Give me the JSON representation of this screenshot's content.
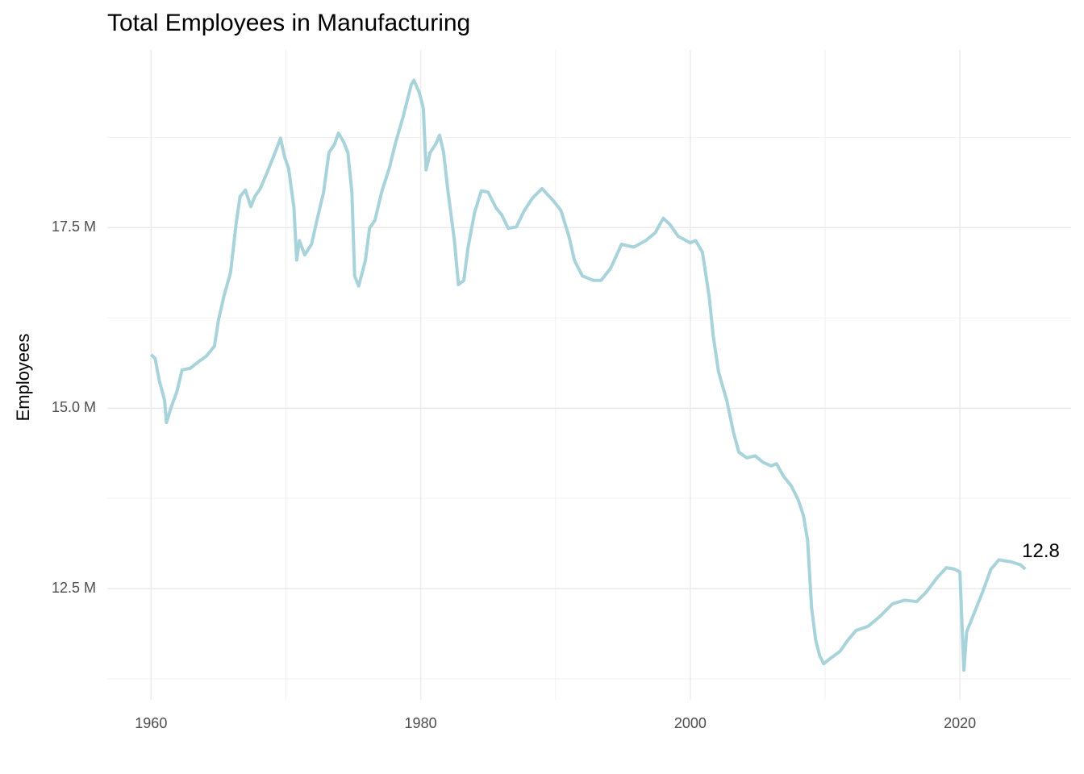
{
  "chart_data": {
    "type": "line",
    "title": "Total Employees in Manufacturing",
    "y_label": "Employees",
    "annotation": "12.8",
    "x": [
      1960.0,
      1960.3,
      1960.6,
      1961.0,
      1961.14,
      1961.5,
      1961.9,
      1962.3,
      1962.9,
      1963.5,
      1964.1,
      1964.7,
      1965.0,
      1965.4,
      1965.9,
      1966.3,
      1966.6,
      1967.0,
      1967.4,
      1967.7,
      1968.1,
      1968.6,
      1969.2,
      1969.6,
      1969.9,
      1970.2,
      1970.6,
      1970.8,
      1971.0,
      1971.4,
      1971.9,
      1972.3,
      1972.8,
      1973.2,
      1973.6,
      1973.9,
      1974.3,
      1974.6,
      1974.9,
      1975.1,
      1975.4,
      1975.9,
      1976.2,
      1976.6,
      1977.1,
      1977.7,
      1978.1,
      1978.7,
      1979.3,
      1979.5,
      1979.9,
      1980.2,
      1980.4,
      1980.7,
      1981.1,
      1981.4,
      1981.7,
      1982.0,
      1982.5,
      1982.8,
      1983.2,
      1983.5,
      1984.0,
      1984.5,
      1985.0,
      1985.6,
      1986.0,
      1986.5,
      1987.1,
      1987.7,
      1988.3,
      1989.0,
      1989.8,
      1990.4,
      1991.0,
      1991.4,
      1992.0,
      1992.8,
      1993.4,
      1994.1,
      1994.9,
      1995.8,
      1996.7,
      1997.4,
      1998.0,
      1998.5,
      1999.1,
      2000.0,
      2000.4,
      2000.9,
      2001.4,
      2001.7,
      2002.1,
      2002.7,
      2003.2,
      2003.6,
      2004.2,
      2004.8,
      2005.4,
      2006.0,
      2006.4,
      2006.9,
      2007.5,
      2008.0,
      2008.4,
      2008.7,
      2009.0,
      2009.3,
      2009.6,
      2009.9,
      2010.5,
      2011.1,
      2011.7,
      2012.3,
      2013.2,
      2014.1,
      2015.0,
      2015.9,
      2016.8,
      2017.5,
      2018.3,
      2019.0,
      2019.6,
      2020.0,
      2020.3,
      2020.5,
      2021.1,
      2021.7,
      2022.3,
      2022.9,
      2023.8,
      2024.5,
      2024.85
    ],
    "series": [
      {
        "color": "#a8d3da",
        "values": [
          15.74,
          15.69,
          15.39,
          15.11,
          14.8,
          15.02,
          15.22,
          15.53,
          15.55,
          15.64,
          15.72,
          15.86,
          16.22,
          16.55,
          16.88,
          17.54,
          17.93,
          18.02,
          17.79,
          17.93,
          18.04,
          18.26,
          18.54,
          18.74,
          18.48,
          18.32,
          17.77,
          17.05,
          17.32,
          17.12,
          17.27,
          17.6,
          17.99,
          18.54,
          18.65,
          18.81,
          18.68,
          18.54,
          17.99,
          16.83,
          16.69,
          17.05,
          17.49,
          17.6,
          17.99,
          18.34,
          18.65,
          19.04,
          19.48,
          19.54,
          19.37,
          19.15,
          18.3,
          18.54,
          18.65,
          18.78,
          18.54,
          18.04,
          17.32,
          16.71,
          16.77,
          17.21,
          17.71,
          18.01,
          17.99,
          17.77,
          17.68,
          17.49,
          17.51,
          17.74,
          17.91,
          18.04,
          17.88,
          17.74,
          17.38,
          17.05,
          16.83,
          16.77,
          16.77,
          16.94,
          17.27,
          17.23,
          17.32,
          17.43,
          17.63,
          17.54,
          17.38,
          17.29,
          17.32,
          17.16,
          16.55,
          16.0,
          15.5,
          15.11,
          14.67,
          14.39,
          14.31,
          14.34,
          14.25,
          14.2,
          14.23,
          14.06,
          13.92,
          13.73,
          13.51,
          13.17,
          12.23,
          11.79,
          11.57,
          11.46,
          11.55,
          11.63,
          11.79,
          11.92,
          11.98,
          12.12,
          12.29,
          12.34,
          12.32,
          12.45,
          12.65,
          12.79,
          12.77,
          12.73,
          11.37,
          11.9,
          12.18,
          12.46,
          12.77,
          12.9,
          12.87,
          12.83,
          12.77
        ]
      }
    ],
    "xlim": [
      1956.75,
      2028.25
    ],
    "ylim": [
      10.96,
      19.96
    ],
    "xticks": [
      1960,
      1980,
      2000,
      2020
    ],
    "minor_xticks": [
      1970,
      1990,
      2010
    ],
    "yticks": [
      {
        "value": 12.5,
        "label": "12.5 M"
      },
      {
        "value": 15.0,
        "label": "15.0 M"
      },
      {
        "value": 17.5,
        "label": "17.5 M"
      }
    ],
    "minor_yticks": [
      11.25,
      13.75,
      16.25,
      18.75
    ],
    "grid": true
  }
}
